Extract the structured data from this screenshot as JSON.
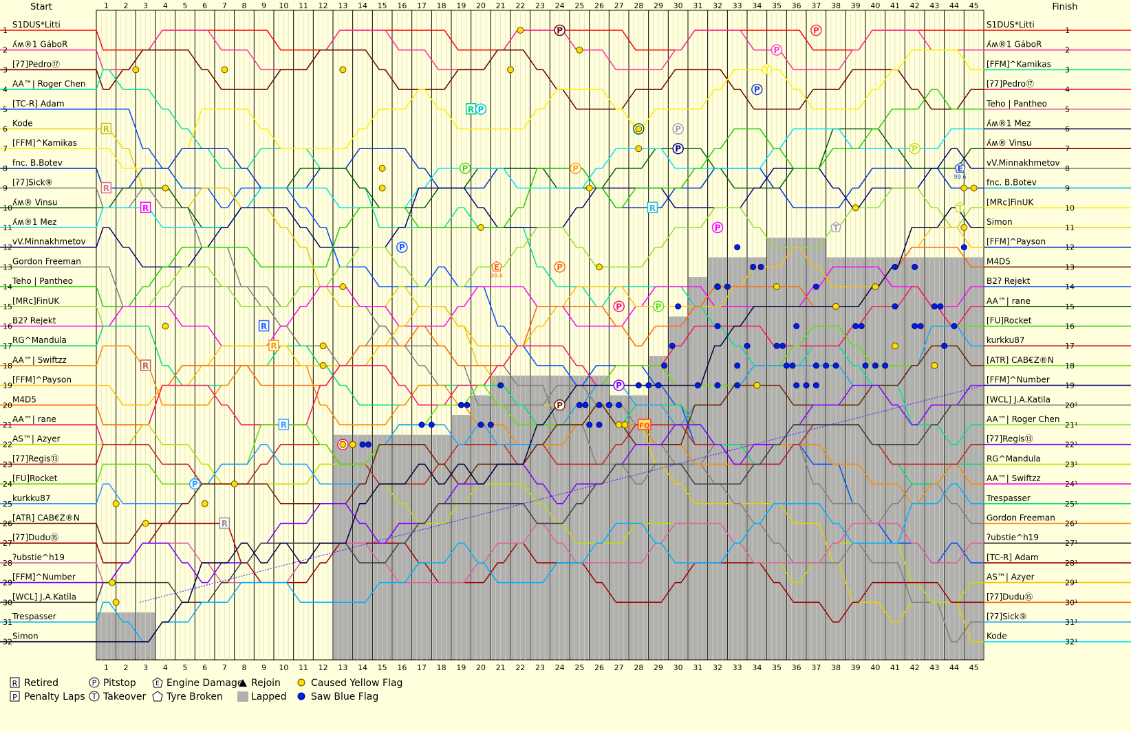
{
  "chart_data": {
    "type": "line",
    "header_left": "Start",
    "header_right": "Finish",
    "laps": [
      1,
      2,
      3,
      4,
      5,
      6,
      7,
      8,
      9,
      10,
      11,
      12,
      13,
      14,
      15,
      16,
      17,
      18,
      19,
      20,
      21,
      22,
      23,
      24,
      25,
      26,
      27,
      28,
      29,
      30,
      31,
      32,
      33,
      34,
      35,
      36,
      37,
      38,
      39,
      40,
      41,
      42,
      43,
      44,
      45
    ],
    "positions": [
      1,
      2,
      3,
      4,
      5,
      6,
      7,
      8,
      9,
      10,
      11,
      12,
      13,
      14,
      15,
      16,
      17,
      18,
      19,
      20,
      21,
      22,
      23,
      24,
      25,
      26,
      27,
      28,
      29,
      30,
      31,
      32
    ],
    "start_labels": [
      "S1DUS*Litti",
      "ʎʍ®1 GáboR",
      "[ʔ7]Pedro⑰",
      "AA™| Roger Chen",
      "[TC-R] Adam",
      "Kode",
      "[FFM]^Kamikas",
      "fnc. B.Botev",
      "[ʔ7]Sick⑨",
      "ʎʍ® Vinsu",
      "ʎʍ®1 Mez",
      "vV.Minnakhmetov",
      "Gordon Freeman",
      "Teho | Pantheo",
      "[MRc]FinUK",
      "B2ʔ Rejekt",
      "RG^Mandula",
      "AA™| Swiftzz",
      "[FFM]^Payson",
      "M4D5",
      "AA™| rane",
      "AS™| Azyer",
      "[ʔ7]Regis⑬",
      "[FU]Rocket",
      "kurkku87",
      "[ATR] CAB€Z®N",
      "[ʔ7]Dudu⑮",
      "ʔubstie^h19",
      "[FFM]^Number",
      "[WCL] J.A.Katila",
      "Trespasser",
      "Simon"
    ],
    "finish_labels": [
      "S1DUS*Litti",
      "ʎʍ®1 GáboR",
      "[FFM]^Kamikas",
      "[ʔ7]Pedro⑰",
      "Teho | Pantheo",
      "ʎʍ®1 Mez",
      "ʎʍ® Vinsu",
      "vV.Minnakhmetov",
      "fnc. B.Botev",
      "[MRc]FinUK",
      "Simon",
      "[FFM]^Payson",
      "M4D5",
      "B2ʔ Rejekt",
      "AA™| rane",
      "[FU]Rocket",
      "kurkku87",
      "[ATR] CAB€Z®N",
      "[FFM]^Number",
      "[WCL] J.A.Katila",
      "AA™| Roger Chen",
      "[ʔ7]Regis⑬",
      "RG^Mandula",
      "AA™| Swiftzz",
      "Trespasser",
      "Gordon Freeman",
      "ʔubstie^h19",
      "[TC-R] Adam",
      "AS™| Azyer",
      "[ʔ7]Dudu⑮",
      "[ʔ7]Sick⑨",
      "Kode"
    ],
    "finish_numbers": [
      "1",
      "2",
      "3",
      "4",
      "5",
      "6",
      "7",
      "8",
      "9",
      "10",
      "11",
      "12",
      "13",
      "14",
      "15",
      "16",
      "17",
      "18",
      "19",
      "20¹",
      "21¹",
      "22¹",
      "23¹",
      "24¹",
      "25¹",
      "26¹",
      "27¹",
      "28¹",
      "29¹",
      "30¹",
      "31¹",
      "32¹"
    ],
    "colors": [
      "#ff0000",
      "#ff2e9a",
      "#6b0000",
      "#00e0a0",
      "#0050ff",
      "#e8d000",
      "#ffee00",
      "#0030d0",
      "#808080",
      "#006000",
      "#00e0ff",
      "#000080",
      "#808080",
      "#20d000",
      "#90e030",
      "#ff00ff",
      "#00e070",
      "#ff8800",
      "#ffc000",
      "#ff6600",
      "#ff1060",
      "#c0e000",
      "#c02020",
      "#60e000",
      "#20a0ff",
      "#702000",
      "#a00000",
      "#e060a0",
      "#8000ff",
      "#404040",
      "#00b0ff",
      "#000040"
    ],
    "annotations": [
      {
        "lap": 1,
        "pos": 6,
        "marker": "R",
        "text": "R",
        "color": "#c8c000"
      },
      {
        "lap": 1,
        "pos": 9,
        "marker": "R",
        "text": "R",
        "color": "#e07080"
      },
      {
        "lap": 3,
        "pos": 10,
        "marker": "R",
        "text": "R",
        "color": "#ff00ff"
      },
      {
        "lap": 3,
        "pos": 18,
        "marker": "R",
        "text": "R",
        "color": "#c06040"
      },
      {
        "lap": 9,
        "pos": 16,
        "marker": "R",
        "text": "R",
        "color": "#2060ff"
      },
      {
        "lap": 9.5,
        "pos": 17,
        "marker": "R",
        "text": "R",
        "color": "#ff9900"
      },
      {
        "lap": 10,
        "pos": 21,
        "marker": "R",
        "text": "R",
        "color": "#40a0ff"
      },
      {
        "lap": 7,
        "pos": 26,
        "marker": "R",
        "text": "R",
        "color": "#909090"
      },
      {
        "lap": 19.5,
        "pos": 5,
        "marker": "R",
        "text": "R",
        "color": "#00d080"
      },
      {
        "lap": 28.7,
        "pos": 10,
        "marker": "R",
        "text": "R",
        "color": "#20c0d0"
      },
      {
        "lap": 24,
        "pos": 1,
        "marker": "P",
        "text": "P",
        "color": "#6b0000"
      },
      {
        "lap": 37,
        "pos": 1,
        "marker": "P",
        "text": "P",
        "color": "#ff3030"
      },
      {
        "lap": 35,
        "pos": 2,
        "marker": "P",
        "text": "P",
        "color": "#ff40c0"
      },
      {
        "lap": 34,
        "pos": 4,
        "marker": "P",
        "text": "P",
        "color": "#2040c0"
      },
      {
        "lap": 20,
        "pos": 5,
        "marker": "P",
        "text": "P",
        "color": "#00c0d0"
      },
      {
        "lap": 28,
        "pos": 6,
        "marker": "P",
        "text": "P",
        "color": "#006000"
      },
      {
        "lap": 30,
        "pos": 6,
        "marker": "P",
        "text": "P",
        "color": "#a0a0a0"
      },
      {
        "lap": 30,
        "pos": 7,
        "marker": "P",
        "text": "P",
        "color": "#000080"
      },
      {
        "lap": 42,
        "pos": 7,
        "marker": "P",
        "text": "P",
        "color": "#c0e000"
      },
      {
        "lap": 24.8,
        "pos": 8,
        "marker": "P",
        "text": "P",
        "color": "#ffa000"
      },
      {
        "lap": 19.2,
        "pos": 8,
        "marker": "P",
        "text": "P",
        "color": "#60d000"
      },
      {
        "lap": 32,
        "pos": 11,
        "marker": "P",
        "text": "P",
        "color": "#ff00ff"
      },
      {
        "lap": 16,
        "pos": 12,
        "marker": "P",
        "text": "P",
        "color": "#2050ff"
      },
      {
        "lap": 24,
        "pos": 13,
        "marker": "P",
        "text": "P",
        "color": "#ff6600"
      },
      {
        "lap": 27,
        "pos": 15,
        "marker": "P",
        "text": "P",
        "color": "#ff1060"
      },
      {
        "lap": 29,
        "pos": 15,
        "marker": "P",
        "text": "P",
        "color": "#60e000"
      },
      {
        "lap": 27,
        "pos": 19,
        "marker": "P",
        "text": "P",
        "color": "#8000ff"
      },
      {
        "lap": 24,
        "pos": 20,
        "marker": "P",
        "text": "P",
        "color": "#702000"
      },
      {
        "lap": 13,
        "pos": 22,
        "marker": "P",
        "text": "P",
        "color": "#ff1060"
      },
      {
        "lap": 5.5,
        "pos": 24,
        "marker": "P",
        "text": "P",
        "color": "#20a0ff"
      },
      {
        "lap": 34.5,
        "pos": 3,
        "marker": "T",
        "text": "T",
        "color": "#ffee00"
      },
      {
        "lap": 38,
        "pos": 11,
        "marker": "T",
        "text": "T",
        "color": "#a0a0a0"
      },
      {
        "lap": 44.3,
        "pos": 10,
        "marker": "T",
        "text": "T",
        "color": "#c0e000"
      },
      {
        "lap": 20.8,
        "pos": 13,
        "marker": "E",
        "text": "E",
        "color": "#ff6600",
        "sub": "99.6"
      },
      {
        "lap": 44.3,
        "pos": 8,
        "marker": "E",
        "text": "E",
        "color": "#2040c0",
        "sub": "99.6"
      },
      {
        "lap": 28.3,
        "pos": 21,
        "marker": "F",
        "text": "FQ",
        "color": "#ff4040"
      }
    ],
    "legend": [
      {
        "marker": "R",
        "label": "Retired"
      },
      {
        "marker": "P",
        "label": "Pitstop"
      },
      {
        "marker": "E",
        "label": "Engine Damage"
      },
      {
        "marker": "rejoin",
        "label": "Rejoin"
      },
      {
        "marker": "yellow",
        "label": "Caused Yellow Flag"
      },
      {
        "marker": "PL",
        "label": "Penalty Laps"
      },
      {
        "marker": "T",
        "label": "Takeover"
      },
      {
        "marker": "tyre",
        "label": "Tyre Broken"
      },
      {
        "marker": "lapped",
        "label": "Lapped"
      },
      {
        "marker": "blue",
        "label": "Saw Blue Flag"
      }
    ],
    "legend_text": {
      "rejoin_mark": "▲",
      "lapped_mark": "■"
    }
  }
}
